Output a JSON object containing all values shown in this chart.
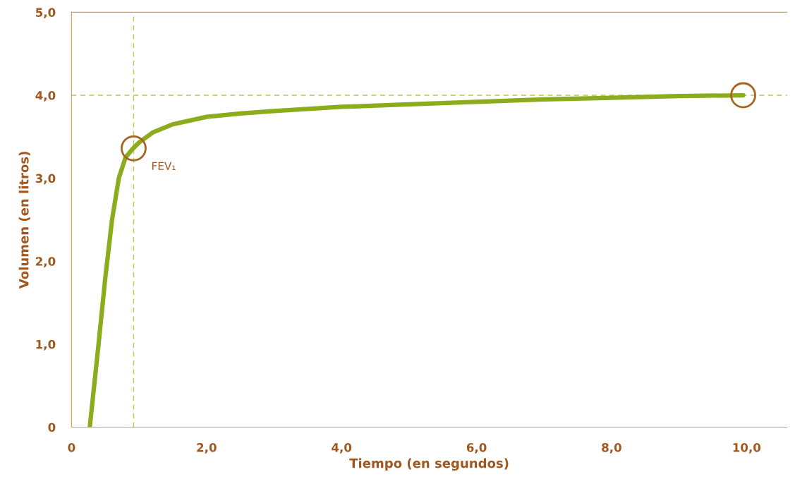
{
  "chart_data": {
    "type": "line",
    "xlabel": "Tiempo (en segundos)",
    "ylabel": "Volumen (en litros)",
    "series": [
      {
        "color": "#8cac1e",
        "marker": "none",
        "x": [
          0.27,
          0.4,
          0.5,
          0.6,
          0.7,
          0.8,
          0.9,
          1.0,
          1.2,
          1.5,
          2.0,
          2.5,
          3.0,
          4.0,
          5.0,
          6.0,
          7.0,
          8.0,
          9.0,
          9.95
        ],
        "values": [
          0,
          1.0,
          1.8,
          2.5,
          3.0,
          3.25,
          3.35,
          3.43,
          3.55,
          3.65,
          3.74,
          3.78,
          3.81,
          3.86,
          3.89,
          3.92,
          3.95,
          3.97,
          3.99,
          4.0
        ]
      },
      {
        "type": "scatter",
        "color": "#a8641e",
        "marker": "circle",
        "x": [
          0.92,
          9.95
        ],
        "values": [
          3.36,
          4.0
        ]
      }
    ],
    "annotations": [
      {
        "text": "FEV₁",
        "x": 0.92,
        "y": 3.36
      }
    ],
    "ref_lines": [
      {
        "axis": "y",
        "value": 4.0,
        "color": "#b8c84a",
        "line_style": "dashed"
      },
      {
        "axis": "x",
        "value": 0.92,
        "color": "#b8c84a",
        "line_style": "dashed"
      }
    ],
    "xlim": [
      0,
      10.6
    ],
    "ylim": [
      0,
      5
    ],
    "xticks": [
      0,
      {
        "value": 2,
        "label": "2,0"
      },
      {
        "value": 4,
        "label": "4,0"
      },
      {
        "value": 6,
        "label": "6,0"
      },
      {
        "value": 8,
        "label": "8,0"
      },
      {
        "value": 10,
        "label": "10,0"
      }
    ],
    "yticks": [
      0,
      {
        "value": 1,
        "label": "1,0"
      },
      {
        "value": 2,
        "label": "2,0"
      },
      {
        "value": 3,
        "label": "3,0"
      },
      {
        "value": 4,
        "label": "4,0"
      },
      {
        "value": 5,
        "label": "5,0"
      }
    ],
    "grid": false,
    "legend": false
  }
}
